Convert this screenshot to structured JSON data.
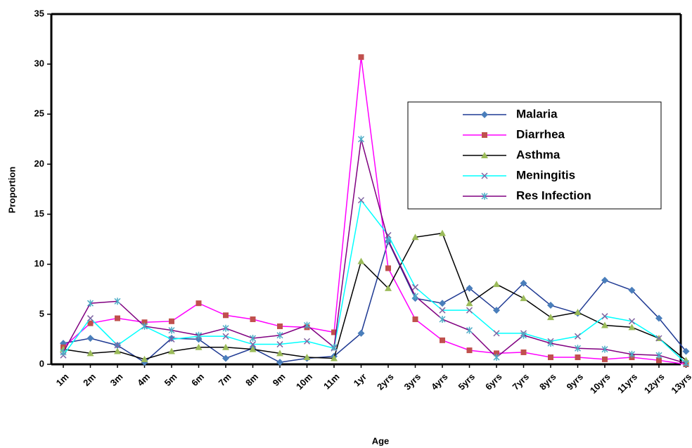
{
  "chart_data": {
    "type": "line",
    "x_label": "Age",
    "y_label": "Proportion",
    "categories": [
      "1m",
      "2m",
      "3m",
      "4m",
      "5m",
      "6m",
      "7m",
      "8m",
      "9m",
      "10m",
      "11m",
      "1yr",
      "2yrs",
      "3yrs",
      "4yrs",
      "5yrs",
      "6yrs",
      "7yrs",
      "8yrs",
      "9yrs",
      "10yrs",
      "11yrs",
      "12yrs",
      "13yrs"
    ],
    "ylim": [
      0,
      35
    ],
    "yticks": [
      0,
      5,
      10,
      15,
      20,
      25,
      30,
      35
    ],
    "grid": false,
    "legend": "upper right",
    "series": [
      {
        "name": "Malaria",
        "color": "#1f3a93",
        "marker": "diamond",
        "marker_color": "#4a7ebb",
        "values": [
          2.1,
          2.6,
          1.9,
          0.2,
          2.6,
          2.5,
          0.6,
          1.6,
          0.2,
          0.6,
          0.8,
          3.1,
          12.3,
          6.6,
          6.1,
          7.6,
          5.4,
          8.1,
          5.9,
          5.1,
          8.4,
          7.4,
          4.6,
          1.3
        ]
      },
      {
        "name": "Diarrhea",
        "color": "#ff00ff",
        "marker": "square",
        "marker_color": "#c0504d",
        "values": [
          1.7,
          4.1,
          4.6,
          4.2,
          4.3,
          6.1,
          4.9,
          4.5,
          3.8,
          3.7,
          3.2,
          30.7,
          9.6,
          4.5,
          2.4,
          1.4,
          1.1,
          1.2,
          0.7,
          0.7,
          0.5,
          0.7,
          0.4,
          0.0
        ]
      },
      {
        "name": "Asthma",
        "color": "#000000",
        "marker": "triangle",
        "marker_color": "#9bbb59",
        "values": [
          1.5,
          1.1,
          1.3,
          0.5,
          1.3,
          1.7,
          1.7,
          1.5,
          1.1,
          0.7,
          0.6,
          10.3,
          7.6,
          12.7,
          13.1,
          6.1,
          8.0,
          6.6,
          4.7,
          5.2,
          3.9,
          3.7,
          2.6,
          0.4
        ]
      },
      {
        "name": "Meningitis",
        "color": "#00ffff",
        "marker": "x",
        "marker_color": "#8064a2",
        "values": [
          0.9,
          4.6,
          1.9,
          3.8,
          2.5,
          2.8,
          2.8,
          2.0,
          2.0,
          2.3,
          1.6,
          16.4,
          12.9,
          7.7,
          5.4,
          5.4,
          3.1,
          3.1,
          2.3,
          2.8,
          4.8,
          4.3,
          2.6,
          0.1
        ]
      },
      {
        "name": "Res Infection",
        "color": "#800080",
        "marker": "star",
        "marker_color": "#4bacc6",
        "values": [
          1.2,
          6.1,
          6.3,
          3.8,
          3.4,
          2.9,
          3.6,
          2.6,
          2.9,
          3.9,
          1.7,
          22.5,
          12.4,
          6.8,
          4.5,
          3.4,
          0.7,
          2.9,
          2.1,
          1.6,
          1.5,
          1.0,
          0.9,
          0.1
        ]
      }
    ]
  }
}
